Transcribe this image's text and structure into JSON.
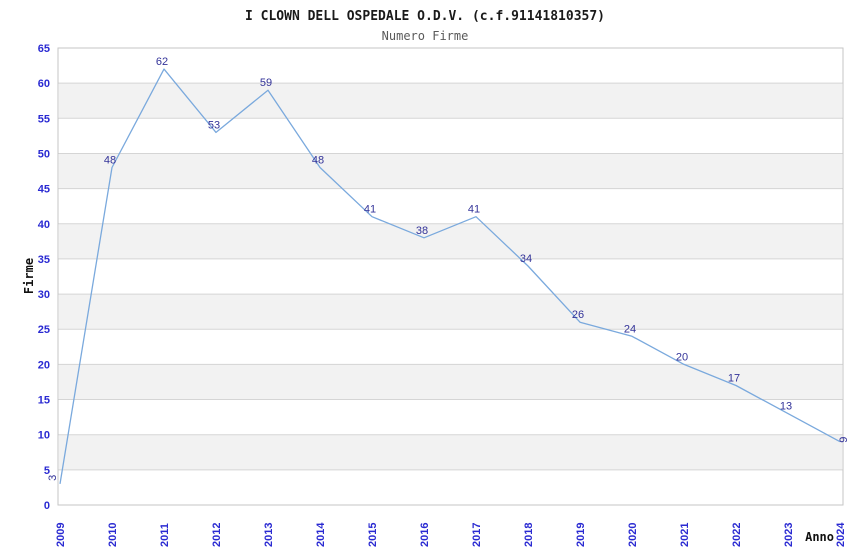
{
  "chart_data": {
    "type": "line",
    "title": "I CLOWN DELL OSPEDALE O.D.V. (c.f.91141810357)",
    "subtitle": "Numero Firme",
    "xlabel": "Anno",
    "ylabel": "Firme",
    "categories": [
      "2009",
      "2010",
      "2011",
      "2012",
      "2013",
      "2014",
      "2015",
      "2016",
      "2017",
      "2018",
      "2019",
      "2020",
      "2021",
      "2022",
      "2023",
      "2024"
    ],
    "values": [
      3,
      48,
      62,
      53,
      59,
      48,
      41,
      38,
      41,
      34,
      26,
      24,
      20,
      17,
      13,
      9
    ],
    "ylim": [
      0,
      65
    ],
    "ytick_step": 5,
    "grid": true,
    "legend": "none",
    "band_fill_alternating": true,
    "colors": {
      "line": "#7AA9DD",
      "tick_label": "#2A2AD2",
      "point_label": "#333399",
      "band": "#F2F2F2",
      "gridline": "#D5D5D5",
      "border": "#C6C6C6",
      "title": "#1A1A1A",
      "subtitle": "#5A5A5A",
      "axis_title": "#111111",
      "background": "#FFFFFF"
    }
  }
}
